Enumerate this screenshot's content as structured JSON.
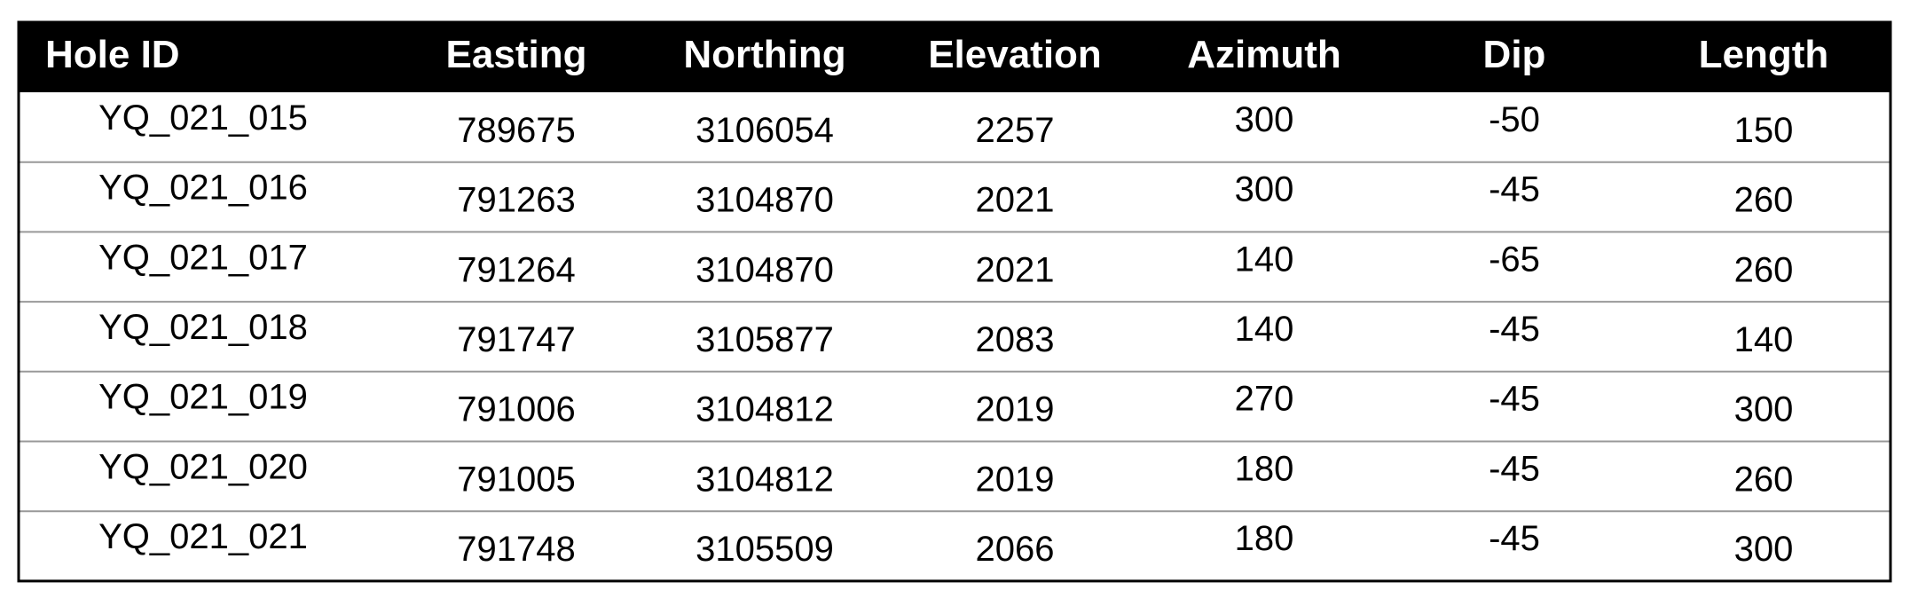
{
  "table": {
    "header": [
      "Hole ID",
      "Easting",
      "Northing",
      "Elevation",
      "Azimuth",
      "Dip",
      "Length"
    ],
    "rows": [
      [
        "YQ_021_015",
        789675,
        3106054,
        2257,
        300,
        -50,
        150
      ],
      [
        "YQ_021_016",
        791263,
        3104870,
        2021,
        300,
        -45,
        260
      ],
      [
        "YQ_021_017",
        791264,
        3104870,
        2021,
        140,
        -65,
        260
      ],
      [
        "YQ_021_018",
        791747,
        3105877,
        2083,
        140,
        -45,
        140
      ],
      [
        "YQ_021_019",
        791006,
        3104812,
        2019,
        270,
        -45,
        300
      ],
      [
        "YQ_021_020",
        791005,
        3104812,
        2019,
        180,
        -45,
        260
      ],
      [
        "YQ_021_021",
        791748,
        3105509,
        2066,
        180,
        -45,
        300
      ]
    ]
  }
}
